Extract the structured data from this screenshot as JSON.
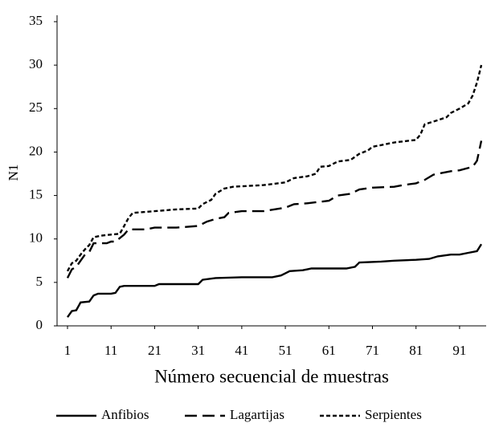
{
  "chart_data": {
    "type": "line",
    "ylabel": "N1",
    "xlabel": "Número secuencial de muestras",
    "xlim": [
      -1.4,
      97.1
    ],
    "xticks": [
      1,
      11,
      21,
      31,
      41,
      51,
      61,
      71,
      81,
      91
    ],
    "ylim": [
      0,
      35
    ],
    "yticks": [
      0,
      5,
      10,
      15,
      20,
      25,
      30,
      35
    ],
    "grid": false,
    "legend": "bottom",
    "series": [
      {
        "name": "Anfibios",
        "color": "#000000",
        "linestyle": "solid",
        "x": [
          1,
          2,
          3,
          4,
          6,
          7,
          8,
          11,
          12,
          13,
          14,
          21,
          22,
          31,
          32,
          35,
          41,
          48,
          50,
          52,
          55,
          57,
          65,
          67,
          68,
          73,
          76,
          81,
          84,
          86,
          89,
          91,
          93,
          95,
          96
        ],
        "values": [
          1,
          1.7,
          1.8,
          2.7,
          2.8,
          3.5,
          3.7,
          3.7,
          3.8,
          4.5,
          4.6,
          4.6,
          4.8,
          4.8,
          5.3,
          5.5,
          5.6,
          5.6,
          5.8,
          6.3,
          6.4,
          6.6,
          6.6,
          6.8,
          7.3,
          7.4,
          7.5,
          7.6,
          7.7,
          8.0,
          8.2,
          8.2,
          8.4,
          8.6,
          9.4
        ]
      },
      {
        "name": "Lagartijas",
        "color": "#000000",
        "linestyle": "dashed",
        "x": [
          1,
          2,
          3,
          4,
          5,
          6,
          7,
          10,
          11,
          12,
          14,
          15,
          19,
          21,
          26,
          31,
          33,
          35,
          37,
          38,
          41,
          46,
          51,
          53,
          56,
          61,
          63,
          66,
          68,
          71,
          76,
          78,
          81,
          83,
          85,
          87,
          89,
          91,
          94,
          95,
          96
        ],
        "values": [
          5.5,
          6.5,
          6.8,
          7.5,
          8.2,
          8.5,
          9.5,
          9.5,
          9.7,
          9.7,
          10.5,
          11.1,
          11.1,
          11.3,
          11.3,
          11.5,
          12,
          12.3,
          12.5,
          13,
          13.2,
          13.2,
          13.6,
          14,
          14.1,
          14.4,
          15,
          15.2,
          15.7,
          15.9,
          16,
          16.2,
          16.4,
          16.8,
          17.4,
          17.6,
          17.8,
          17.9,
          18.3,
          19,
          21.3
        ]
      },
      {
        "name": "Serpientes",
        "color": "#000000",
        "linestyle": "dotted",
        "x": [
          1,
          2,
          3,
          4,
          5,
          6,
          7,
          9,
          11,
          13,
          14,
          15,
          16,
          21,
          26,
          31,
          32,
          34,
          35,
          37,
          39,
          46,
          51,
          53,
          56,
          58,
          59,
          61,
          63,
          66,
          68,
          70,
          71,
          73,
          76,
          81,
          82,
          83,
          85,
          88,
          89,
          91,
          93,
          94,
          95,
          96
        ],
        "values": [
          6.3,
          7.2,
          7.5,
          8.2,
          8.8,
          9.3,
          10.2,
          10.4,
          10.5,
          10.6,
          11.5,
          12.4,
          13,
          13.2,
          13.4,
          13.5,
          14,
          14.5,
          15.2,
          15.8,
          16,
          16.2,
          16.5,
          17,
          17.2,
          17.5,
          18.3,
          18.4,
          18.9,
          19.1,
          19.8,
          20.2,
          20.6,
          20.8,
          21.1,
          21.4,
          22,
          23.2,
          23.5,
          24,
          24.5,
          25,
          25.6,
          26.5,
          28,
          30
        ]
      }
    ]
  }
}
